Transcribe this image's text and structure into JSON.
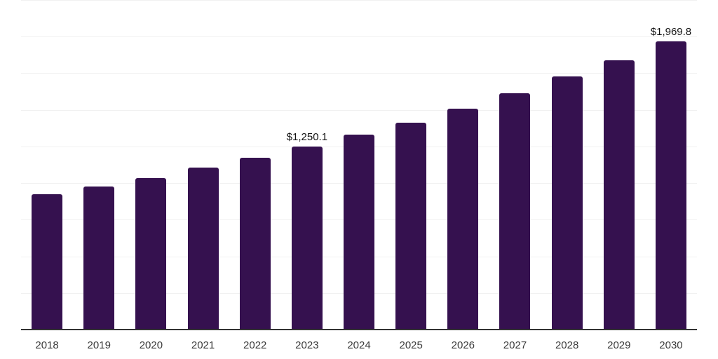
{
  "chart_data": {
    "type": "bar",
    "title": "",
    "xlabel": "",
    "ylabel": "",
    "categories": [
      "2018",
      "2019",
      "2020",
      "2021",
      "2022",
      "2023",
      "2024",
      "2025",
      "2026",
      "2027",
      "2028",
      "2029",
      "2030"
    ],
    "values": [
      922,
      975,
      1036,
      1106,
      1175,
      1250.1,
      1331,
      1414,
      1507,
      1614,
      1727,
      1840,
      1969.8
    ],
    "value_labels": [
      "",
      "",
      "",
      "",
      "",
      "$1,250.1",
      "",
      "",
      "",
      "",
      "",
      "",
      "$1,969.8"
    ],
    "ylim": [
      0,
      2250
    ],
    "gridline_step": 250,
    "grid": "horizontal",
    "legend_position": "none",
    "y_axis_labels_visible": false,
    "colors": {
      "bar": "#35114F",
      "axis_line": "#333333",
      "gridline": "#F1F1F1",
      "x_tick_label": "#3A3A3A",
      "data_label": "#111111",
      "background": "#FFFFFF"
    }
  }
}
